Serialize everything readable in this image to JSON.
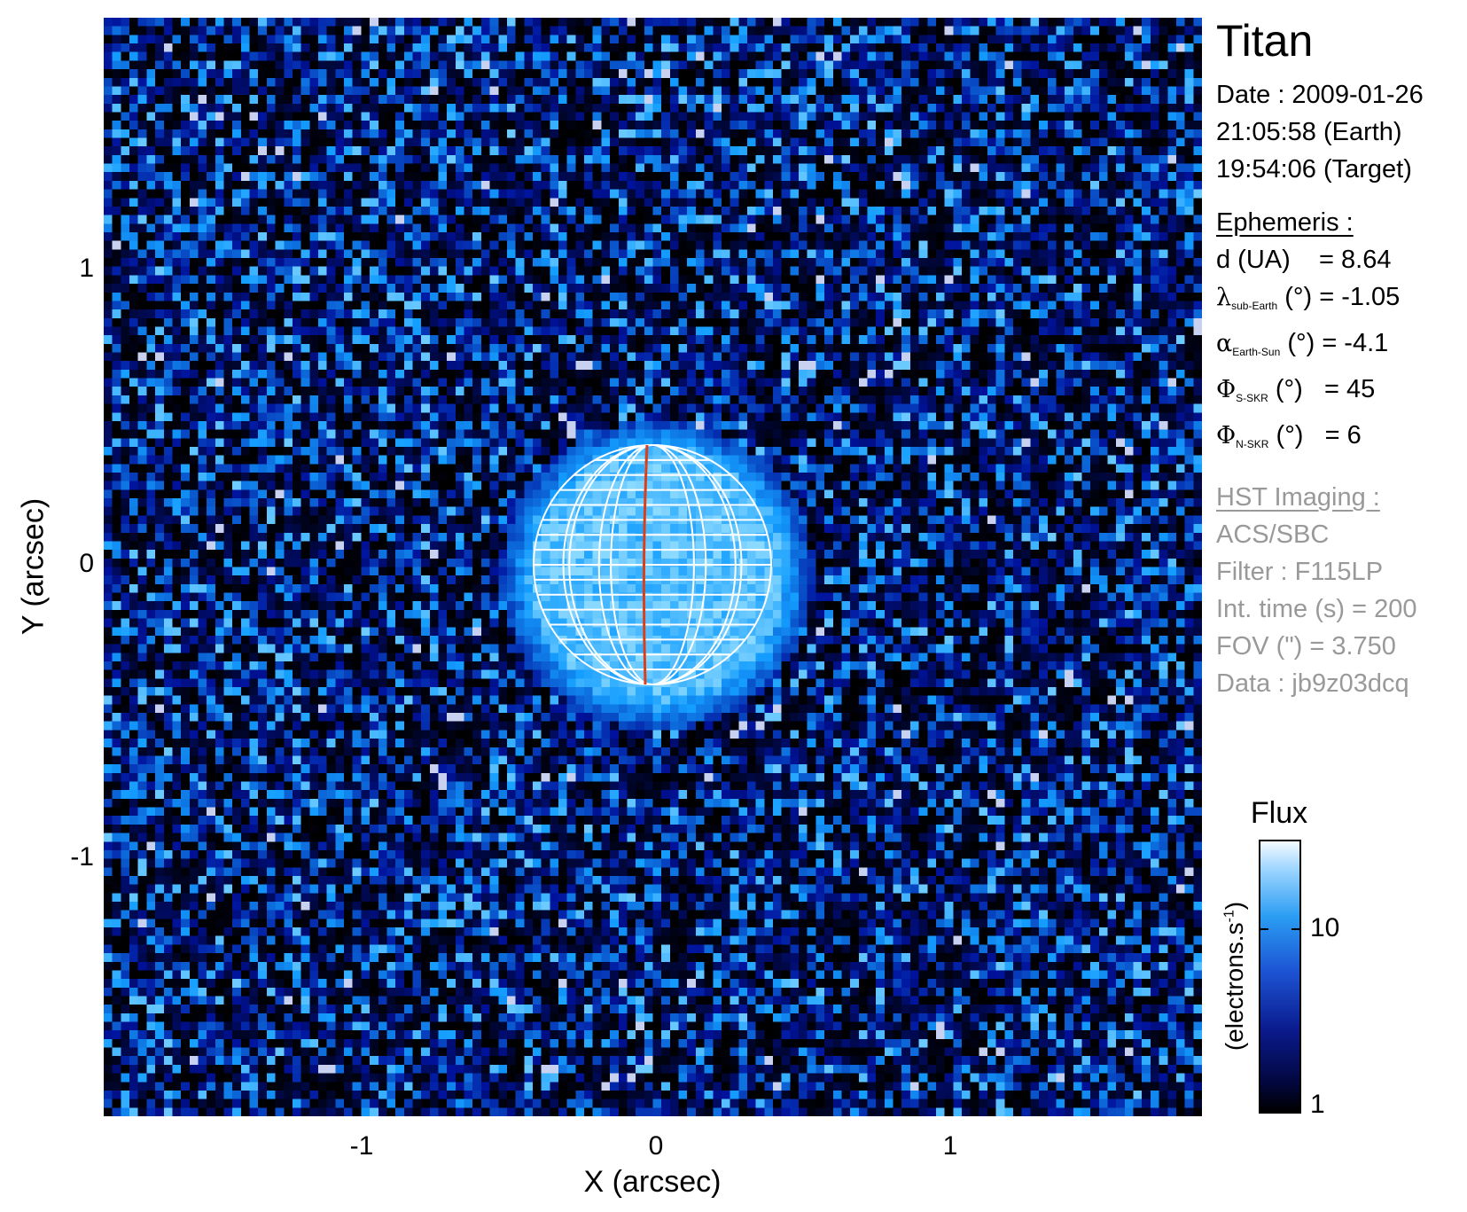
{
  "image": {
    "subject": "Titan",
    "xlabel": "X (arcsec)",
    "ylabel": "Y (arcsec)",
    "x_ticks": [
      "-1",
      "0",
      "1"
    ],
    "y_ticks": [
      "1",
      "0",
      "-1"
    ],
    "grid_color": "#ffffff",
    "meridian_color": "#d9401a",
    "background_color": "#000000"
  },
  "info": {
    "title": "Titan",
    "date_line": "Date : 2009-01-26",
    "earth_time": "21:05:58 (Earth)",
    "target_time": "19:54:06 (Target)",
    "ephemeris_heading": "Ephemeris :",
    "distance": {
      "label": "d (UA)",
      "value": "= 8.64"
    },
    "sub_earth": {
      "symbol": "λ",
      "subscript": "sub-Earth",
      "unit": "(°)",
      "value": "= -1.05"
    },
    "earth_sun": {
      "symbol": "α",
      "subscript": "Earth-Sun",
      "unit": "(°)",
      "value": "= -4.1"
    },
    "s_skr": {
      "symbol": "Φ",
      "subscript": "S-SKR",
      "unit": "(°)",
      "value": "= 45"
    },
    "n_skr": {
      "symbol": "Φ",
      "subscript": "N-SKR",
      "unit": "(°)",
      "value": "= 6"
    },
    "hst_heading": "HST Imaging :",
    "instrument": "ACS/SBC",
    "filter": "Filter : F115LP",
    "int_time": "Int. time (s) = 200",
    "fov": "FOV (\") = 3.750",
    "data_id": "Data : jb9z03dcq"
  },
  "colorbar": {
    "title": "Flux",
    "unit": "(electrons.s",
    "unit_sup": "-1",
    "unit_close": ")",
    "tick_labels": [
      "10",
      "1"
    ],
    "colors": [
      "#000000",
      "#0a1a8c",
      "#2a9cf2",
      "#f4fbff"
    ]
  }
}
